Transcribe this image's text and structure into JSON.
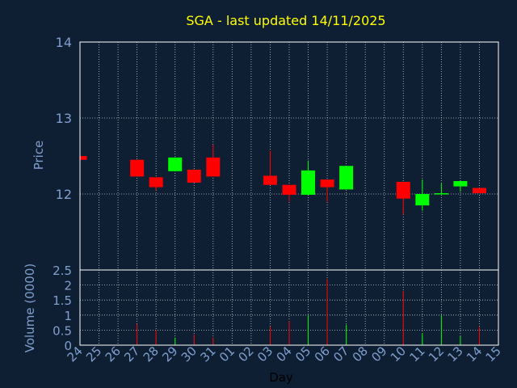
{
  "chart_data": {
    "type": "candlestick",
    "title": "SGA - last updated 14/11/2025",
    "xlabel": "Day",
    "price_ylabel": "Price",
    "volume_ylabel": "Volume (0000)",
    "price_yticks": [
      "12",
      "13",
      "14"
    ],
    "price_ylim": [
      11.0,
      14.0
    ],
    "volume_yticks": [
      "0",
      "0.5",
      "1",
      "1.5",
      "2",
      "2.5"
    ],
    "volume_ylim": [
      0,
      2.5
    ],
    "grid": true,
    "colors": {
      "background": "#0f1f33",
      "up": "#00ff00",
      "down": "#ff0000",
      "title": "#ffff00",
      "tick_label": "#7f9fcf",
      "frame": "#ffffff"
    },
    "days": [
      "24",
      "25",
      "26",
      "27",
      "28",
      "29",
      "30",
      "31",
      "01",
      "02",
      "03",
      "04",
      "05",
      "06",
      "07",
      "08",
      "09",
      "10",
      "11",
      "12",
      "13",
      "14",
      "15"
    ],
    "candles": [
      {
        "day": "24",
        "open": 12.5,
        "close": 12.45,
        "high": 12.52,
        "low": 12.45
      },
      {
        "day": "27",
        "open": 12.45,
        "close": 12.23,
        "high": 12.45,
        "low": 12.23
      },
      {
        "day": "28",
        "open": 12.22,
        "close": 12.09,
        "high": 12.22,
        "low": 12.05
      },
      {
        "day": "29",
        "open": 12.3,
        "close": 12.48,
        "high": 12.48,
        "low": 12.3
      },
      {
        "day": "30",
        "open": 12.32,
        "close": 12.15,
        "high": 12.32,
        "low": 12.15
      },
      {
        "day": "31",
        "open": 12.48,
        "close": 12.23,
        "high": 12.65,
        "low": 12.23
      },
      {
        "day": "03",
        "open": 12.24,
        "close": 12.12,
        "high": 12.57,
        "low": 12.12
      },
      {
        "day": "04",
        "open": 12.12,
        "close": 11.99,
        "high": 12.12,
        "low": 11.9
      },
      {
        "day": "05",
        "open": 11.99,
        "close": 12.31,
        "high": 12.44,
        "low": 11.99
      },
      {
        "day": "06",
        "open": 12.19,
        "close": 12.09,
        "high": 12.19,
        "low": 11.9
      },
      {
        "day": "07",
        "open": 12.06,
        "close": 12.37,
        "high": 12.37,
        "low": 12.06
      },
      {
        "day": "10",
        "open": 12.16,
        "close": 11.94,
        "high": 12.16,
        "low": 11.73
      },
      {
        "day": "11",
        "open": 11.85,
        "close": 12.0,
        "high": 12.19,
        "low": 11.78
      },
      {
        "day": "12",
        "open": 12.0,
        "close": 12.01,
        "high": 12.14,
        "low": 12.0
      },
      {
        "day": "13",
        "open": 12.1,
        "close": 12.17,
        "high": 12.17,
        "low": 12.03
      },
      {
        "day": "14",
        "open": 12.08,
        "close": 12.01,
        "high": 12.08,
        "low": 12.01
      }
    ],
    "volumes": [
      {
        "day": "27",
        "value": 0.7,
        "color": "red"
      },
      {
        "day": "28",
        "value": 0.5,
        "color": "red"
      },
      {
        "day": "29",
        "value": 0.25,
        "color": "green"
      },
      {
        "day": "30",
        "value": 0.35,
        "color": "red"
      },
      {
        "day": "31",
        "value": 0.25,
        "color": "red"
      },
      {
        "day": "03",
        "value": 0.62,
        "color": "red"
      },
      {
        "day": "04",
        "value": 0.8,
        "color": "red"
      },
      {
        "day": "05",
        "value": 1.0,
        "color": "green"
      },
      {
        "day": "06",
        "value": 2.2,
        "color": "red"
      },
      {
        "day": "07",
        "value": 0.68,
        "color": "green"
      },
      {
        "day": "10",
        "value": 1.8,
        "color": "red"
      },
      {
        "day": "11",
        "value": 0.4,
        "color": "green"
      },
      {
        "day": "12",
        "value": 1.0,
        "color": "green"
      },
      {
        "day": "13",
        "value": 0.3,
        "color": "green"
      },
      {
        "day": "14",
        "value": 0.6,
        "color": "red"
      }
    ]
  }
}
